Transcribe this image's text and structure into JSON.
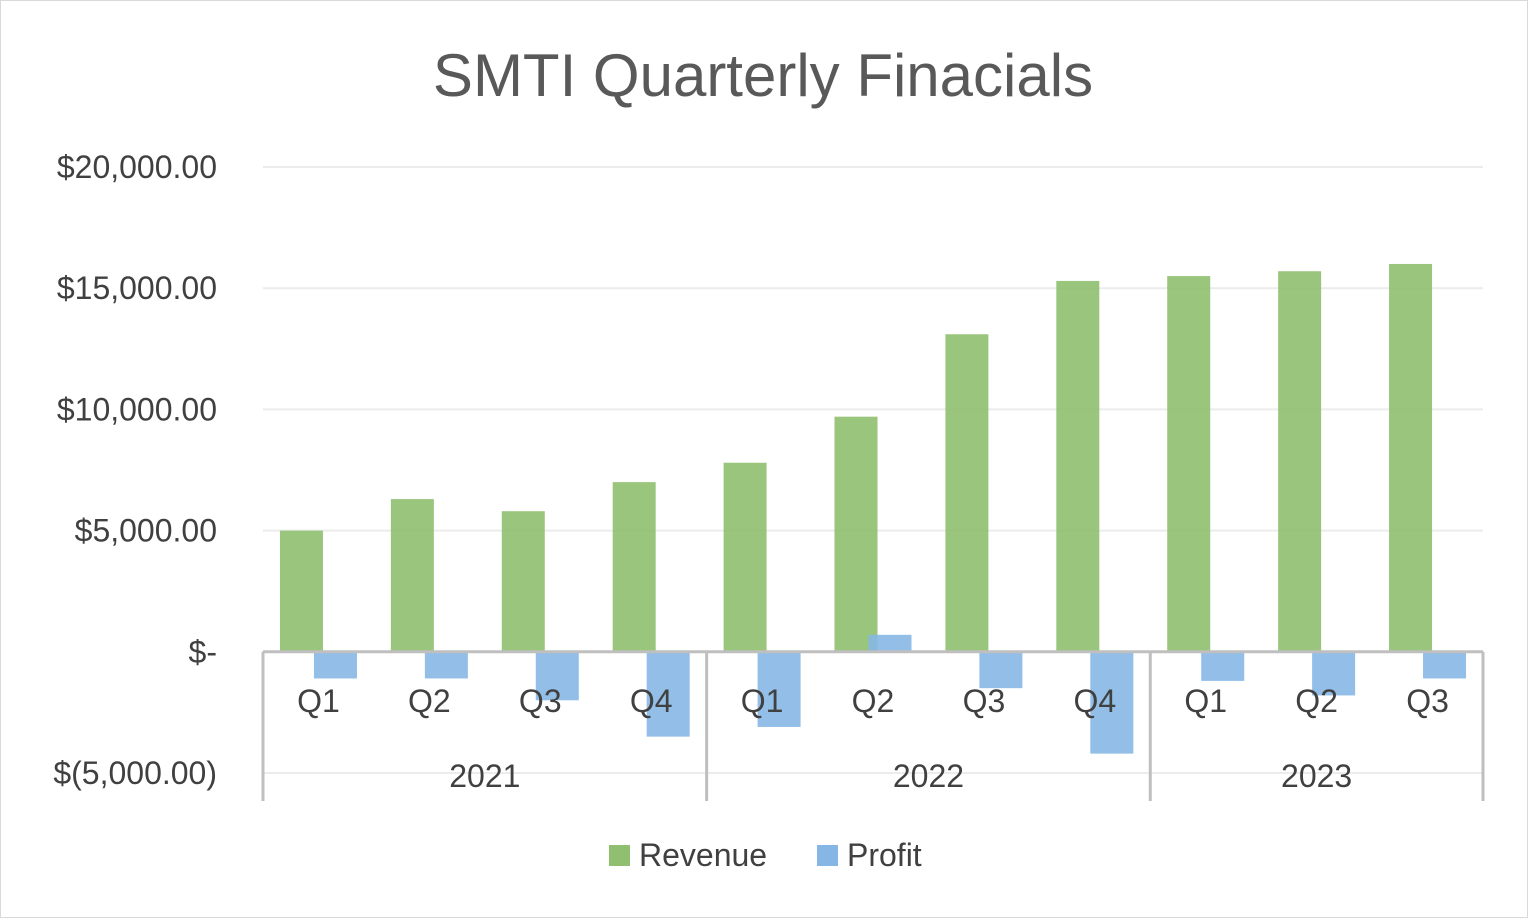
{
  "chart_data": {
    "type": "bar",
    "title": "SMTI Quarterly Finacials",
    "xlabel": "",
    "ylabel": "",
    "ylim": [
      -5000,
      20000
    ],
    "y_ticks": [
      20000,
      15000,
      10000,
      5000,
      0,
      -5000
    ],
    "y_tick_labels": [
      "$20,000.00",
      "$15,000.00",
      "$10,000.00",
      "$5,000.00",
      "$-",
      "$(5,000.00)"
    ],
    "groups": [
      {
        "label": "2021",
        "categories": [
          "Q1",
          "Q2",
          "Q3",
          "Q4"
        ]
      },
      {
        "label": "2022",
        "categories": [
          "Q1",
          "Q2",
          "Q3",
          "Q4"
        ]
      },
      {
        "label": "2023",
        "categories": [
          "Q1",
          "Q2",
          "Q3"
        ]
      }
    ],
    "categories": [
      "Q1",
      "Q2",
      "Q3",
      "Q4",
      "Q1",
      "Q2",
      "Q3",
      "Q4",
      "Q1",
      "Q2",
      "Q3"
    ],
    "series": [
      {
        "name": "Revenue",
        "color": "#8fbf6f",
        "values": [
          5000,
          6300,
          5800,
          7000,
          7800,
          9700,
          13100,
          15300,
          15500,
          15700,
          16000
        ]
      },
      {
        "name": "Profit",
        "color": "#86b7e4",
        "values": [
          -1100,
          -1100,
          -2000,
          -3500,
          -3100,
          700,
          -1500,
          -4200,
          -1200,
          -1800,
          -1100
        ]
      }
    ],
    "grid": true,
    "legend": "bottom"
  }
}
